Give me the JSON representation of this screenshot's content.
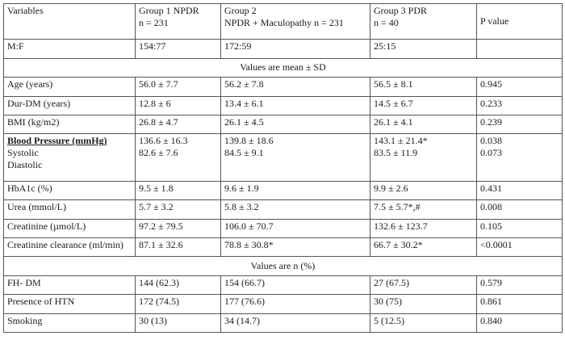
{
  "header": {
    "variables": "Variables",
    "g1_line1": "Group 1 NPDR",
    "g1_line2": "n = 231",
    "g2_line1": "Group 2",
    "g2_line2": "NPDR + Maculopathy n = 231",
    "g3_line1": "Group 3 PDR",
    "g3_line2": "n = 40",
    "pvalue": "P value"
  },
  "sex_row": {
    "label": "M:F",
    "g1": "154:77",
    "g2": "172:59",
    "g3": "25:15",
    "p": ""
  },
  "section_mean": "Values are mean ± SD",
  "mean_rows": [
    {
      "label": "Age (years)",
      "g1": "56.0 ± 7.7",
      "g2": "56.2 ± 7.8",
      "g3": "56.5 ± 8.1",
      "p": "0.945"
    },
    {
      "label": "Dur-DM (years)",
      "g1": "12.8 ± 6",
      "g2": "13.4 ± 6.1",
      "g3": "14.5 ± 6.7",
      "p": "0.233"
    },
    {
      "label": "BMI (kg/m2)",
      "g1": "26.8 ± 4.7",
      "g2": "26.1 ± 4.5",
      "g3": "26.1 ± 4.1",
      "p": "0.239"
    }
  ],
  "bp": {
    "title": "Blood Pressure (mmHg)",
    "systolic_label": "Systolic",
    "diastolic_label": "Diastolic",
    "g1_sys": "136.6 ± 16.3",
    "g1_dia": "82.6 ± 7.6",
    "g2_sys": "139.8 ± 18.6",
    "g2_dia": "84.5 ± 9.1",
    "g3_sys": "143.1 ± 21.4*",
    "g3_dia": "83.5 ± 11.9",
    "p_sys": "0.038",
    "p_dia": "0.073"
  },
  "lab_rows": [
    {
      "label": "HbA1c (%)",
      "g1": "9.5 ± 1.8",
      "g2": "9.6 ± 1.9",
      "g3": "9.9 ± 2.6",
      "p": "0.431"
    },
    {
      "label": "Urea (mmol/L)",
      "g1": "5.7 ± 3.2",
      "g2": "5.8 ± 3.2",
      "g3": "7.5 ± 5.7*,#",
      "p": "0.008"
    },
    {
      "label": "Creatinine (µmol/L)",
      "g1": "97.2 ± 79.5",
      "g2": "106.0 ± 70.7",
      "g3": "132.6 ± 123.7",
      "p": "0.105"
    },
    {
      "label": "Creatinine clearance (ml/min)",
      "g1": "87.1 ± 32.6",
      "g2": "78.8 ± 30.8*",
      "g3": "66.7 ± 30.2*",
      "p": "<0.0001"
    }
  ],
  "section_n": "Values are n (%)",
  "n_rows": [
    {
      "label": "FH- DM",
      "g1": "144 (62.3)",
      "g2": "154 (66.7)",
      "g3": "27 (67.5)",
      "p": "0.579"
    },
    {
      "label": "Presence of HTN",
      "g1": "172 (74.5)",
      "g2": "177 (76.6)",
      "g3": "30 (75)",
      "p": "0.861"
    },
    {
      "label": "Smoking",
      "g1": "30 (13)",
      "g2": "34 (14.7)",
      "g3": "5 (12.5)",
      "p": "0.840"
    }
  ]
}
